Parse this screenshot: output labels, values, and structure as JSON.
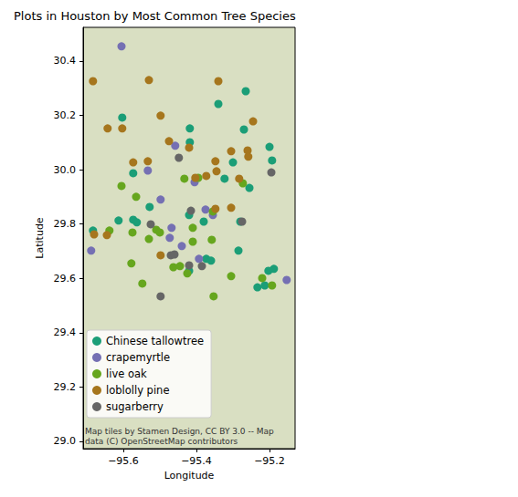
{
  "chart_data": {
    "type": "scatter",
    "title": "Plots in Houston by Most Common Tree Species",
    "x_label": "Longitude",
    "y_label": "Latitude",
    "xlim": [
      -95.71,
      -95.13
    ],
    "ylim": [
      28.973,
      30.524
    ],
    "xticks": [
      {
        "value": -95.6,
        "label": "−95.6"
      },
      {
        "value": -95.4,
        "label": "−95.4"
      },
      {
        "value": -95.2,
        "label": "−95.2"
      }
    ],
    "yticks": [
      {
        "value": 29,
        "label": "29.0"
      },
      29.2,
      29.4,
      29.6,
      29.8,
      {
        "value": 30,
        "label": "30.0"
      },
      30.2,
      30.4
    ],
    "grid": false,
    "legend": "lower left",
    "annotations": [
      "Map tiles by Stamen Design, CC BY 3.0 -- Map data (C) OpenStreetMap contributors"
    ],
    "series": [
      {
        "name": "Chinese tallowtree",
        "color": "#1b9e77",
        "marker": "circle",
        "x": [
          -95.265,
          -95.34,
          -95.603,
          -95.418,
          -95.27,
          -95.418,
          -95.2,
          -95.193,
          -95.3,
          -95.573,
          -95.323,
          -95.255,
          -95.528,
          -95.42,
          -95.28,
          -95.613,
          -95.573,
          -95.563,
          -95.38,
          -95.285,
          -95.373,
          -95.36,
          -95.203,
          -95.188,
          -95.233,
          -95.213,
          -95.42,
          -95.683
        ],
        "y": [
          30.289,
          30.242,
          30.192,
          30.152,
          30.148,
          30.101,
          30.084,
          30.034,
          30.027,
          29.987,
          29.967,
          29.933,
          29.863,
          29.833,
          29.809,
          29.813,
          29.816,
          29.806,
          29.809,
          29.702,
          29.672,
          29.665,
          29.628,
          29.635,
          29.567,
          29.574,
          29.628,
          29.776
        ]
      },
      {
        "name": "crapemyrtle",
        "color": "#7570b3",
        "marker": "circle",
        "x": [
          -95.605,
          -95.458,
          -95.533,
          -95.405,
          -95.498,
          -95.375,
          -95.355,
          -95.468,
          -95.688,
          -95.473,
          -95.44,
          -95.393,
          -95.153
        ],
        "y": [
          30.454,
          30.088,
          29.997,
          29.954,
          29.89,
          29.853,
          29.833,
          29.786,
          29.702,
          29.749,
          29.719,
          29.672,
          29.594
        ]
      },
      {
        "name": "live oak",
        "color": "#66a61e",
        "marker": "circle",
        "x": [
          -95.433,
          -95.395,
          -95.605,
          -95.273,
          -95.565,
          -95.355,
          -95.638,
          -95.575,
          -95.51,
          -95.41,
          -95.5,
          -95.53,
          -95.41,
          -95.358,
          -95.578,
          -95.463,
          -95.445,
          -95.425,
          -95.305,
          -95.22,
          -95.193,
          -95.548,
          -95.353
        ],
        "y": [
          29.967,
          29.97,
          29.94,
          29.95,
          29.9,
          29.846,
          29.776,
          29.769,
          29.779,
          29.786,
          29.769,
          29.745,
          29.735,
          29.742,
          29.655,
          29.641,
          29.645,
          29.618,
          29.608,
          29.601,
          29.574,
          29.581,
          29.534
        ]
      },
      {
        "name": "loblolly pine",
        "color": "#a6761d",
        "marker": "circle",
        "x": [
          -95.683,
          -95.53,
          -95.34,
          -95.498,
          -95.245,
          -95.643,
          -95.603,
          -95.475,
          -95.42,
          -95.305,
          -95.26,
          -95.258,
          -95.573,
          -95.533,
          -95.348,
          -95.345,
          -95.403,
          -95.373,
          -95.283,
          -95.348,
          -95.305,
          -95.645,
          -95.68,
          -95.498
        ],
        "y": [
          30.326,
          30.33,
          30.326,
          30.199,
          30.178,
          30.152,
          30.152,
          30.105,
          30.081,
          30.068,
          30.071,
          30.048,
          30.027,
          30.031,
          30.031,
          29.994,
          29.97,
          29.977,
          29.967,
          29.856,
          29.86,
          29.759,
          29.762,
          29.685
        ]
      },
      {
        "name": "sugarberry",
        "color": "#666666",
        "marker": "circle",
        "x": [
          -95.448,
          -95.195,
          -95.415,
          -95.275,
          -95.525,
          -95.47,
          -95.46,
          -95.42,
          -95.385,
          -95.498
        ],
        "y": [
          30.044,
          29.99,
          29.849,
          29.809,
          29.799,
          29.685,
          29.688,
          29.648,
          29.645,
          29.534
        ]
      }
    ]
  }
}
